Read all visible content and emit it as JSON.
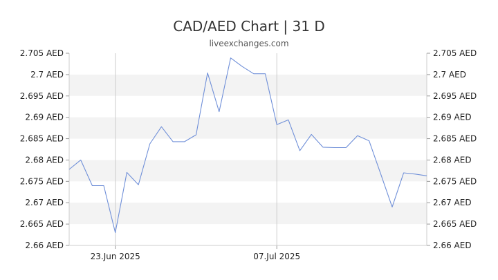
{
  "chart_data": {
    "type": "line",
    "title": "CAD/AED Chart | 31 D",
    "subtitle": "liveexchanges.com",
    "y_ticks": [
      "2.705 AED",
      "2.7 AED",
      "2.695 AED",
      "2.69 AED",
      "2.685 AED",
      "2.68 AED",
      "2.675 AED",
      "2.67 AED",
      "2.665 AED",
      "2.66 AED"
    ],
    "y_tick_values": [
      2.705,
      2.7,
      2.695,
      2.69,
      2.685,
      2.68,
      2.675,
      2.67,
      2.665,
      2.66
    ],
    "ylim": [
      2.66,
      2.705
    ],
    "x_ticks": [
      "23.Jun 2025",
      "07.Jul 2025"
    ],
    "x_tick_index": [
      4,
      18
    ],
    "grid": "alternating horizontal bands, vertical lines at x ticks",
    "line_color": "#6f8fd8",
    "band_color": "#f3f3f3",
    "values": [
      2.6778,
      2.68,
      2.674,
      2.674,
      2.663,
      2.6771,
      2.6742,
      2.6838,
      2.6878,
      2.6843,
      2.6843,
      2.6859,
      2.7004,
      2.6913,
      2.7039,
      2.7019,
      2.7002,
      2.7002,
      2.6883,
      2.6894,
      2.6822,
      2.686,
      2.683,
      2.6829,
      2.6829,
      2.6857,
      2.6845,
      2.6768,
      2.669,
      2.677,
      2.6767,
      2.6763
    ]
  }
}
